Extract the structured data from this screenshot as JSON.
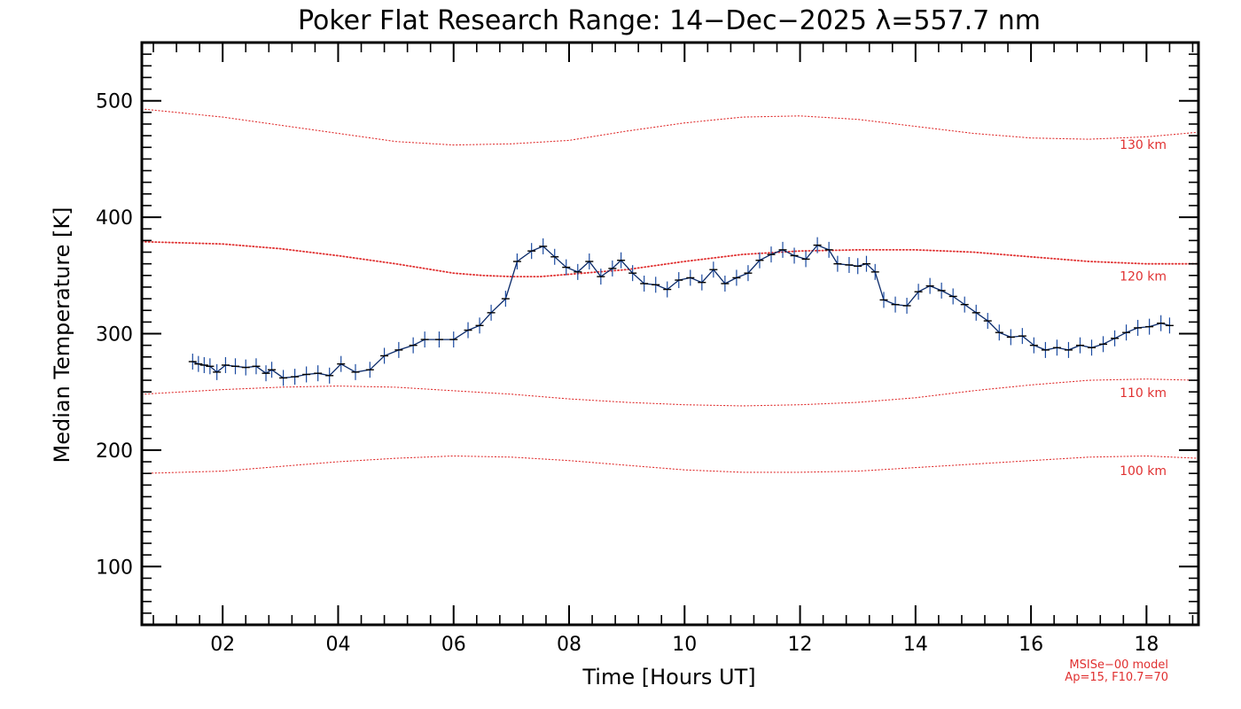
{
  "chart_data": {
    "type": "line",
    "title": "Poker Flat Research Range: 14−Dec−2025 λ=557.7 nm",
    "xlabel": "Time [Hours UT]",
    "ylabel": "Median Temperature [K]",
    "xlim": [
      0.6,
      18.9
    ],
    "ylim": [
      50,
      550
    ],
    "x_ticks": [
      {
        "value": 2,
        "label": "02"
      },
      {
        "value": 4,
        "label": "04"
      },
      {
        "value": 6,
        "label": "06"
      },
      {
        "value": 8,
        "label": "08"
      },
      {
        "value": 10,
        "label": "10"
      },
      {
        "value": 12,
        "label": "12"
      },
      {
        "value": 14,
        "label": "14"
      },
      {
        "value": 16,
        "label": "16"
      },
      {
        "value": 18,
        "label": "18"
      }
    ],
    "y_ticks": [
      {
        "value": 100,
        "label": "100"
      },
      {
        "value": 200,
        "label": "200"
      },
      {
        "value": 300,
        "label": "300"
      },
      {
        "value": 400,
        "label": "400"
      },
      {
        "value": 500,
        "label": "500"
      }
    ],
    "series": [
      {
        "name": "Median Temperature",
        "color": "#0a2a6a",
        "x": [
          1.48,
          1.58,
          1.68,
          1.78,
          1.9,
          2.05,
          2.22,
          2.4,
          2.58,
          2.75,
          2.85,
          3.05,
          3.25,
          3.45,
          3.65,
          3.85,
          4.05,
          4.3,
          4.55,
          4.8,
          5.05,
          5.3,
          5.5,
          5.75,
          6.0,
          6.25,
          6.45,
          6.65,
          6.9,
          7.1,
          7.35,
          7.55,
          7.75,
          7.95,
          8.15,
          8.35,
          8.55,
          8.75,
          8.9,
          9.1,
          9.3,
          9.5,
          9.7,
          9.9,
          10.1,
          10.3,
          10.5,
          10.7,
          10.9,
          11.1,
          11.3,
          11.5,
          11.7,
          11.9,
          12.1,
          12.3,
          12.5,
          12.65,
          12.85,
          13.0,
          13.15,
          13.3,
          13.45,
          13.65,
          13.85,
          14.05,
          14.25,
          14.45,
          14.65,
          14.85,
          15.05,
          15.25,
          15.45,
          15.65,
          15.85,
          16.05,
          16.25,
          16.45,
          16.65,
          16.85,
          17.05,
          17.25,
          17.45,
          17.65,
          17.85,
          18.05,
          18.25,
          18.4
        ],
        "y": [
          276,
          274,
          273,
          272,
          267,
          273,
          272,
          271,
          272,
          266,
          269,
          262,
          263,
          265,
          266,
          264,
          274,
          267,
          269,
          281,
          286,
          290,
          295,
          295,
          295,
          303,
          307,
          318,
          330,
          362,
          371,
          375,
          366,
          357,
          353,
          362,
          349,
          356,
          363,
          352,
          343,
          342,
          338,
          346,
          348,
          344,
          355,
          343,
          348,
          352,
          363,
          368,
          372,
          367,
          364,
          376,
          372,
          360,
          359,
          358,
          360,
          353,
          329,
          325,
          324,
          336,
          341,
          337,
          332,
          325,
          318,
          311,
          301,
          297,
          298,
          290,
          286,
          288,
          286,
          290,
          288,
          291,
          296,
          301,
          305,
          306,
          309,
          307
        ]
      }
    ],
    "model_curves": [
      {
        "label": "130 km",
        "color": "#e03030",
        "x": [
          0.6,
          2,
          4,
          5,
          6,
          7,
          8,
          9,
          10,
          11,
          12,
          13,
          14,
          15,
          16,
          17,
          18,
          18.9
        ],
        "y": [
          493,
          486,
          472,
          465,
          462,
          463,
          466,
          474,
          481,
          486,
          487,
          484,
          478,
          472,
          468,
          467,
          469,
          473
        ]
      },
      {
        "label": "120 km",
        "color": "#e03030",
        "x": [
          0.6,
          2,
          3,
          4,
          5,
          6,
          6.5,
          7,
          7.5,
          8,
          9,
          10,
          11,
          12,
          13,
          14,
          15,
          16,
          17,
          18,
          18.9
        ],
        "y": [
          379,
          377,
          373,
          367,
          360,
          352,
          350,
          349,
          349,
          351,
          355,
          362,
          368,
          371,
          372,
          372,
          370,
          366,
          362,
          360,
          360
        ]
      },
      {
        "label": "110 km",
        "color": "#e03030",
        "x": [
          0.6,
          2,
          3,
          4,
          5,
          6,
          7,
          8,
          9,
          10,
          11,
          12,
          13,
          14,
          15,
          16,
          17,
          18,
          18.9
        ],
        "y": [
          248,
          252,
          254,
          255,
          254,
          251,
          248,
          244,
          241,
          239,
          238,
          239,
          241,
          245,
          251,
          256,
          260,
          261,
          260
        ]
      },
      {
        "label": "100 km",
        "color": "#e03030",
        "x": [
          0.6,
          2,
          3,
          4,
          5,
          6,
          7,
          8,
          9,
          10,
          11,
          12,
          13,
          14,
          15,
          16,
          17,
          18,
          18.9
        ],
        "y": [
          180,
          182,
          186,
          190,
          193,
          195,
          194,
          191,
          187,
          183,
          181,
          181,
          182,
          185,
          188,
          191,
          194,
          195,
          193
        ]
      }
    ],
    "footnote": [
      "MSISe−00 model",
      "Ap=15, F10.7=70"
    ]
  }
}
